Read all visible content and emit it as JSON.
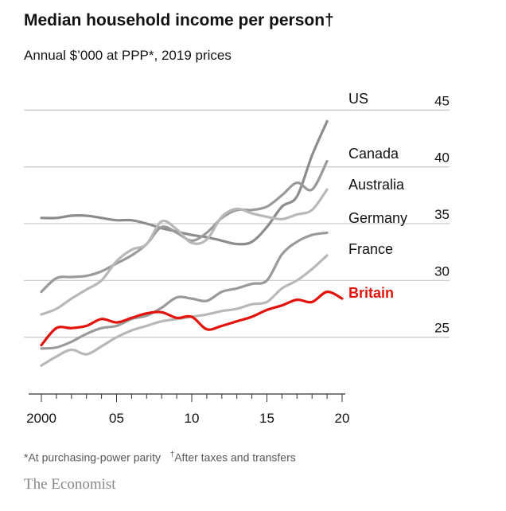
{
  "header": {
    "title": "Median household income per person†",
    "subtitle": "Annual $’000 at PPP*, 2019 prices"
  },
  "footnotes": {
    "star": "*At purchasing-power parity",
    "dagger_mark": "†",
    "dagger_text": "After taxes and transfers"
  },
  "brand": "The Economist",
  "colors": {
    "grid": "#c8c8c8",
    "axis": "#333333",
    "britain": "#e3120b",
    "text": "#121212"
  },
  "chart_data": {
    "type": "line",
    "title": "Median household income per person†",
    "subtitle": "Annual $’000 at PPP*, 2019 prices",
    "xlim": [
      2000,
      2020
    ],
    "ylim": [
      20,
      46
    ],
    "x_ticks": [
      2000,
      2005,
      2010,
      2015,
      2020
    ],
    "x_tick_labels": [
      "2000",
      "05",
      "10",
      "15",
      "20"
    ],
    "y_ticks": [
      25,
      30,
      35,
      40,
      45
    ],
    "y_tick_labels": [
      "25",
      "30",
      "35",
      "40",
      "45"
    ],
    "y_axis_side": "right",
    "grid": true,
    "legend": "direct labels at line ends",
    "series": [
      {
        "name": "US",
        "color": "#8c8c8c",
        "x": [
          2000,
          2001,
          2002,
          2003,
          2004,
          2005,
          2006,
          2007,
          2008,
          2009,
          2010,
          2011,
          2012,
          2013,
          2014,
          2015,
          2016,
          2017,
          2018,
          2019
        ],
        "values": [
          35.5,
          35.5,
          35.7,
          35.7,
          35.5,
          35.3,
          35.3,
          35.0,
          34.6,
          34.3,
          34.0,
          33.8,
          33.5,
          33.2,
          33.4,
          34.7,
          36.5,
          37.4,
          41.0,
          44.0
        ]
      },
      {
        "name": "Canada",
        "color": "#9a9a9a",
        "x": [
          2000,
          2001,
          2002,
          2003,
          2004,
          2005,
          2006,
          2007,
          2008,
          2009,
          2010,
          2011,
          2012,
          2013,
          2014,
          2015,
          2016,
          2017,
          2018,
          2019
        ],
        "values": [
          29.0,
          30.2,
          30.3,
          30.4,
          30.8,
          31.5,
          32.2,
          33.2,
          34.7,
          34.2,
          33.5,
          34.2,
          35.5,
          36.2,
          36.2,
          36.5,
          37.5,
          38.6,
          38.0,
          40.5
        ]
      },
      {
        "name": "Australia",
        "color": "#b8b8b8",
        "x": [
          2000,
          2001,
          2002,
          2003,
          2004,
          2005,
          2006,
          2007,
          2008,
          2009,
          2010,
          2011,
          2012,
          2013,
          2014,
          2015,
          2016,
          2017,
          2018,
          2019
        ],
        "values": [
          27.0,
          27.5,
          28.4,
          29.2,
          30.0,
          31.7,
          32.7,
          33.2,
          35.2,
          34.5,
          33.3,
          33.6,
          35.6,
          36.3,
          35.9,
          35.6,
          35.4,
          35.8,
          36.2,
          38.0
        ]
      },
      {
        "name": "Germany",
        "color": "#9a9a9a",
        "x": [
          2000,
          2001,
          2002,
          2003,
          2004,
          2005,
          2006,
          2007,
          2008,
          2009,
          2010,
          2011,
          2012,
          2013,
          2014,
          2015,
          2016,
          2017,
          2018,
          2019
        ],
        "values": [
          24.0,
          24.1,
          24.6,
          25.3,
          25.8,
          26.0,
          26.6,
          26.9,
          27.6,
          28.5,
          28.4,
          28.2,
          29.0,
          29.3,
          29.7,
          30.0,
          32.3,
          33.4,
          34.0,
          34.2
        ]
      },
      {
        "name": "France",
        "color": "#b8b8b8",
        "x": [
          2000,
          2001,
          2002,
          2003,
          2004,
          2005,
          2006,
          2007,
          2008,
          2009,
          2010,
          2011,
          2012,
          2013,
          2014,
          2015,
          2016,
          2017,
          2018,
          2019
        ],
        "values": [
          22.5,
          23.3,
          23.9,
          23.5,
          24.2,
          25.0,
          25.6,
          26.0,
          26.4,
          26.6,
          26.8,
          27.0,
          27.3,
          27.5,
          27.9,
          28.1,
          29.3,
          30.0,
          31.0,
          32.2
        ]
      },
      {
        "name": "Britain",
        "color": "#e3120b",
        "x": [
          2000,
          2001,
          2002,
          2003,
          2004,
          2005,
          2006,
          2007,
          2008,
          2009,
          2010,
          2011,
          2012,
          2013,
          2014,
          2015,
          2016,
          2017,
          2018,
          2019,
          2020
        ],
        "values": [
          24.3,
          25.8,
          25.8,
          26.0,
          26.6,
          26.3,
          26.7,
          27.1,
          27.2,
          26.7,
          26.8,
          25.7,
          26.0,
          26.4,
          26.8,
          27.4,
          27.8,
          28.3,
          28.1,
          29.0,
          28.4
        ]
      }
    ]
  }
}
